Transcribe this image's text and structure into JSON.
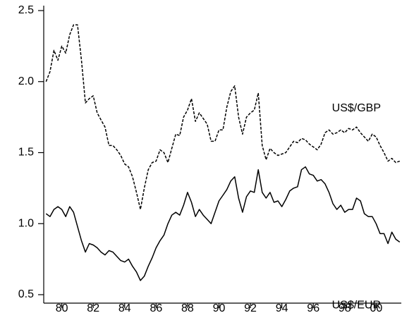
{
  "chart_data": {
    "type": "line",
    "x": [
      1979.0,
      1979.25,
      1979.5,
      1979.75,
      1980.0,
      1980.25,
      1980.5,
      1980.75,
      1981.0,
      1981.25,
      1981.5,
      1981.75,
      1982.0,
      1982.25,
      1982.5,
      1982.75,
      1983.0,
      1983.25,
      1983.5,
      1983.75,
      1984.0,
      1984.25,
      1984.5,
      1984.75,
      1985.0,
      1985.25,
      1985.5,
      1985.75,
      1986.0,
      1986.25,
      1986.5,
      1986.75,
      1987.0,
      1987.25,
      1987.5,
      1987.75,
      1988.0,
      1988.25,
      1988.5,
      1988.75,
      1989.0,
      1989.25,
      1989.5,
      1989.75,
      1990.0,
      1990.25,
      1990.5,
      1990.75,
      1991.0,
      1991.25,
      1991.5,
      1991.75,
      1992.0,
      1992.25,
      1992.5,
      1992.75,
      1993.0,
      1993.25,
      1993.5,
      1993.75,
      1994.0,
      1994.25,
      1994.5,
      1994.75,
      1995.0,
      1995.25,
      1995.5,
      1995.75,
      1996.0,
      1996.25,
      1996.5,
      1996.75,
      1997.0,
      1997.25,
      1997.5,
      1997.75,
      1998.0,
      1998.25,
      1998.5,
      1998.75,
      1999.0,
      1999.25,
      1999.5,
      1999.75,
      2000.0,
      2000.25,
      2000.5,
      2000.75,
      2001.0,
      2001.25,
      2001.5
    ],
    "series": [
      {
        "name": "US$/GBP",
        "color": "#000000",
        "dashed": true,
        "values": [
          2.0,
          2.07,
          2.22,
          2.15,
          2.25,
          2.2,
          2.33,
          2.4,
          2.4,
          2.15,
          1.85,
          1.88,
          1.9,
          1.78,
          1.73,
          1.68,
          1.55,
          1.55,
          1.52,
          1.48,
          1.42,
          1.4,
          1.33,
          1.22,
          1.1,
          1.25,
          1.38,
          1.43,
          1.44,
          1.52,
          1.5,
          1.43,
          1.53,
          1.63,
          1.62,
          1.75,
          1.8,
          1.88,
          1.72,
          1.78,
          1.74,
          1.7,
          1.58,
          1.58,
          1.66,
          1.66,
          1.82,
          1.93,
          1.97,
          1.75,
          1.63,
          1.75,
          1.78,
          1.8,
          1.92,
          1.55,
          1.45,
          1.53,
          1.5,
          1.48,
          1.49,
          1.5,
          1.54,
          1.58,
          1.57,
          1.6,
          1.59,
          1.56,
          1.54,
          1.52,
          1.56,
          1.64,
          1.66,
          1.63,
          1.64,
          1.66,
          1.64,
          1.67,
          1.66,
          1.68,
          1.64,
          1.61,
          1.58,
          1.63,
          1.61,
          1.55,
          1.5,
          1.44,
          1.46,
          1.43,
          1.44
        ]
      },
      {
        "name": "US$/EUR",
        "color": "#000000",
        "dashed": false,
        "values": [
          1.07,
          1.05,
          1.1,
          1.12,
          1.1,
          1.05,
          1.12,
          1.08,
          0.98,
          0.88,
          0.8,
          0.86,
          0.85,
          0.83,
          0.8,
          0.78,
          0.81,
          0.8,
          0.77,
          0.74,
          0.73,
          0.75,
          0.7,
          0.66,
          0.6,
          0.63,
          0.7,
          0.76,
          0.83,
          0.88,
          0.92,
          1.0,
          1.06,
          1.08,
          1.06,
          1.13,
          1.22,
          1.15,
          1.05,
          1.1,
          1.06,
          1.03,
          1.0,
          1.08,
          1.16,
          1.2,
          1.24,
          1.3,
          1.33,
          1.18,
          1.08,
          1.19,
          1.23,
          1.22,
          1.38,
          1.22,
          1.18,
          1.22,
          1.15,
          1.16,
          1.12,
          1.17,
          1.23,
          1.25,
          1.26,
          1.38,
          1.4,
          1.35,
          1.34,
          1.3,
          1.31,
          1.28,
          1.22,
          1.14,
          1.1,
          1.13,
          1.08,
          1.1,
          1.1,
          1.18,
          1.16,
          1.07,
          1.05,
          1.05,
          1.0,
          0.93,
          0.93,
          0.86,
          0.94,
          0.89,
          0.87
        ]
      }
    ],
    "xlim": [
      1978.85,
      2001.6
    ],
    "xticks": [
      {
        "value": 1980,
        "label": "80"
      },
      {
        "value": 1982,
        "label": "82"
      },
      {
        "value": 1984,
        "label": "84"
      },
      {
        "value": 1986,
        "label": "86"
      },
      {
        "value": 1988,
        "label": "88"
      },
      {
        "value": 1990,
        "label": "90"
      },
      {
        "value": 1992,
        "label": "92"
      },
      {
        "value": 1994,
        "label": "94"
      },
      {
        "value": 1996,
        "label": "96"
      },
      {
        "value": 1998,
        "label": "98"
      },
      {
        "value": 2000,
        "label": "00"
      }
    ],
    "ylim": [
      0.5,
      2.5
    ],
    "yticks": [
      0.5,
      {
        "value": 1.0,
        "label": "1.0"
      },
      1.5,
      {
        "value": 2.0,
        "label": "2.0"
      },
      2.5
    ],
    "grid": false
  }
}
